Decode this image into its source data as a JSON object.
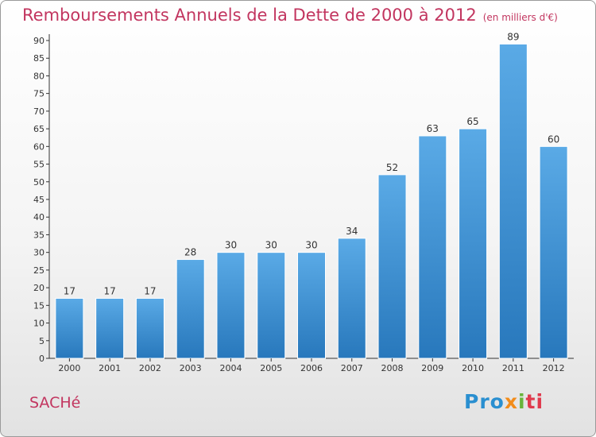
{
  "header": {
    "title": "Remboursements Annuels de la Dette de 2000 à 2012",
    "unit": "(en milliers d'€)"
  },
  "footer": {
    "city": "SACHé",
    "brand": "Proxiti"
  },
  "colors": {
    "title": "#c2355f",
    "bar_top": "#5aaae6",
    "bar_bottom": "#2878bc",
    "axis": "#333333"
  },
  "chart_data": {
    "type": "bar",
    "title": "Remboursements Annuels de la Dette de 2000 à 2012",
    "subtitle": "(en milliers d'€)",
    "xlabel": "",
    "ylabel": "",
    "categories": [
      "2000",
      "2001",
      "2002",
      "2003",
      "2004",
      "2005",
      "2006",
      "2007",
      "2008",
      "2009",
      "2010",
      "2011",
      "2012"
    ],
    "values": [
      17,
      17,
      17,
      28,
      30,
      30,
      30,
      34,
      52,
      63,
      65,
      89,
      60
    ],
    "ylim": [
      0,
      90
    ],
    "yticks": [
      0,
      5,
      10,
      15,
      20,
      25,
      30,
      35,
      40,
      45,
      50,
      55,
      60,
      65,
      70,
      75,
      80,
      85,
      90
    ],
    "grid": false,
    "legend": "none",
    "data_labels": true
  }
}
